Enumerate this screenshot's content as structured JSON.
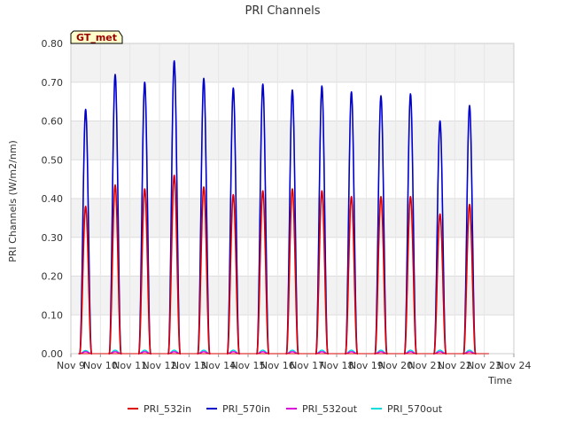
{
  "chart_data": {
    "type": "line",
    "title": "PRI Channels",
    "xlabel": "Time",
    "ylabel": "PRI Channels (W/m2/nm)",
    "station_label": "GT_met",
    "ylim": [
      0,
      0.8
    ],
    "xlim": [
      0,
      15
    ],
    "x_ticks": [
      {
        "x": 0,
        "label": "Nov 9"
      },
      {
        "x": 1,
        "label": "Nov 10"
      },
      {
        "x": 2,
        "label": "Nov 11"
      },
      {
        "x": 3,
        "label": "Nov 12"
      },
      {
        "x": 4,
        "label": "Nov 13"
      },
      {
        "x": 5,
        "label": "Nov 14"
      },
      {
        "x": 6,
        "label": "Nov 15"
      },
      {
        "x": 7,
        "label": "Nov 16"
      },
      {
        "x": 8,
        "label": "Nov 17"
      },
      {
        "x": 9,
        "label": "Nov 18"
      },
      {
        "x": 10,
        "label": "Nov 19"
      },
      {
        "x": 11,
        "label": "Nov 20"
      },
      {
        "x": 12,
        "label": "Nov 21"
      },
      {
        "x": 13,
        "label": "Nov 22"
      },
      {
        "x": 14,
        "label": "Nov 23"
      },
      {
        "x": 15,
        "label": "Nov 24"
      }
    ],
    "y_ticks": [
      {
        "y": 0.0,
        "label": "0.00"
      },
      {
        "y": 0.1,
        "label": "0.10"
      },
      {
        "y": 0.2,
        "label": "0.20"
      },
      {
        "y": 0.3,
        "label": "0.30"
      },
      {
        "y": 0.4,
        "label": "0.40"
      },
      {
        "y": 0.5,
        "label": "0.50"
      },
      {
        "y": 0.6,
        "label": "0.60"
      },
      {
        "y": 0.7,
        "label": "0.70"
      },
      {
        "y": 0.8,
        "label": "0.80"
      }
    ],
    "series": [
      {
        "name": "PRI_532in",
        "color": "#dd0000"
      },
      {
        "name": "PRI_570in",
        "color": "#0000cc"
      },
      {
        "name": "PRI_532out",
        "color": "#dd00dd"
      },
      {
        "name": "PRI_570out",
        "color": "#00dddd"
      }
    ],
    "daily_peaks": [
      {
        "day": 0,
        "center": 0.5,
        "halfwidth": 0.2,
        "PRI_532in": 0.38,
        "PRI_570in": 0.63,
        "PRI_532out": 0.005,
        "PRI_570out": 0.008
      },
      {
        "day": 1,
        "center": 1.5,
        "halfwidth": 0.2,
        "PRI_532in": 0.435,
        "PRI_570in": 0.72,
        "PRI_532out": 0.005,
        "PRI_570out": 0.009
      },
      {
        "day": 2,
        "center": 2.5,
        "halfwidth": 0.2,
        "PRI_532in": 0.425,
        "PRI_570in": 0.7,
        "PRI_532out": 0.005,
        "PRI_570out": 0.009
      },
      {
        "day": 3,
        "center": 3.5,
        "halfwidth": 0.2,
        "PRI_532in": 0.46,
        "PRI_570in": 0.755,
        "PRI_532out": 0.005,
        "PRI_570out": 0.009
      },
      {
        "day": 4,
        "center": 4.5,
        "halfwidth": 0.2,
        "PRI_532in": 0.43,
        "PRI_570in": 0.71,
        "PRI_532out": 0.005,
        "PRI_570out": 0.009
      },
      {
        "day": 5,
        "center": 5.5,
        "halfwidth": 0.2,
        "PRI_532in": 0.41,
        "PRI_570in": 0.685,
        "PRI_532out": 0.005,
        "PRI_570out": 0.009
      },
      {
        "day": 6,
        "center": 6.5,
        "halfwidth": 0.2,
        "PRI_532in": 0.42,
        "PRI_570in": 0.695,
        "PRI_532out": 0.005,
        "PRI_570out": 0.009
      },
      {
        "day": 7,
        "center": 7.5,
        "halfwidth": 0.2,
        "PRI_532in": 0.425,
        "PRI_570in": 0.68,
        "PRI_532out": 0.005,
        "PRI_570out": 0.009
      },
      {
        "day": 8,
        "center": 8.5,
        "halfwidth": 0.2,
        "PRI_532in": 0.42,
        "PRI_570in": 0.69,
        "PRI_532out": 0.005,
        "PRI_570out": 0.009
      },
      {
        "day": 9,
        "center": 9.5,
        "halfwidth": 0.2,
        "PRI_532in": 0.405,
        "PRI_570in": 0.675,
        "PRI_532out": 0.005,
        "PRI_570out": 0.009
      },
      {
        "day": 10,
        "center": 10.5,
        "halfwidth": 0.2,
        "PRI_532in": 0.405,
        "PRI_570in": 0.665,
        "PRI_532out": 0.005,
        "PRI_570out": 0.009
      },
      {
        "day": 11,
        "center": 11.5,
        "halfwidth": 0.2,
        "PRI_532in": 0.405,
        "PRI_570in": 0.67,
        "PRI_532out": 0.005,
        "PRI_570out": 0.009
      },
      {
        "day": 12,
        "center": 12.5,
        "halfwidth": 0.2,
        "PRI_532in": 0.36,
        "PRI_570in": 0.6,
        "PRI_532out": 0.005,
        "PRI_570out": 0.009
      },
      {
        "day": 13,
        "center": 13.5,
        "halfwidth": 0.2,
        "PRI_532in": 0.385,
        "PRI_570in": 0.64,
        "PRI_532out": 0.005,
        "PRI_570out": 0.009
      }
    ],
    "grid": true,
    "legend_position": "bottom"
  }
}
